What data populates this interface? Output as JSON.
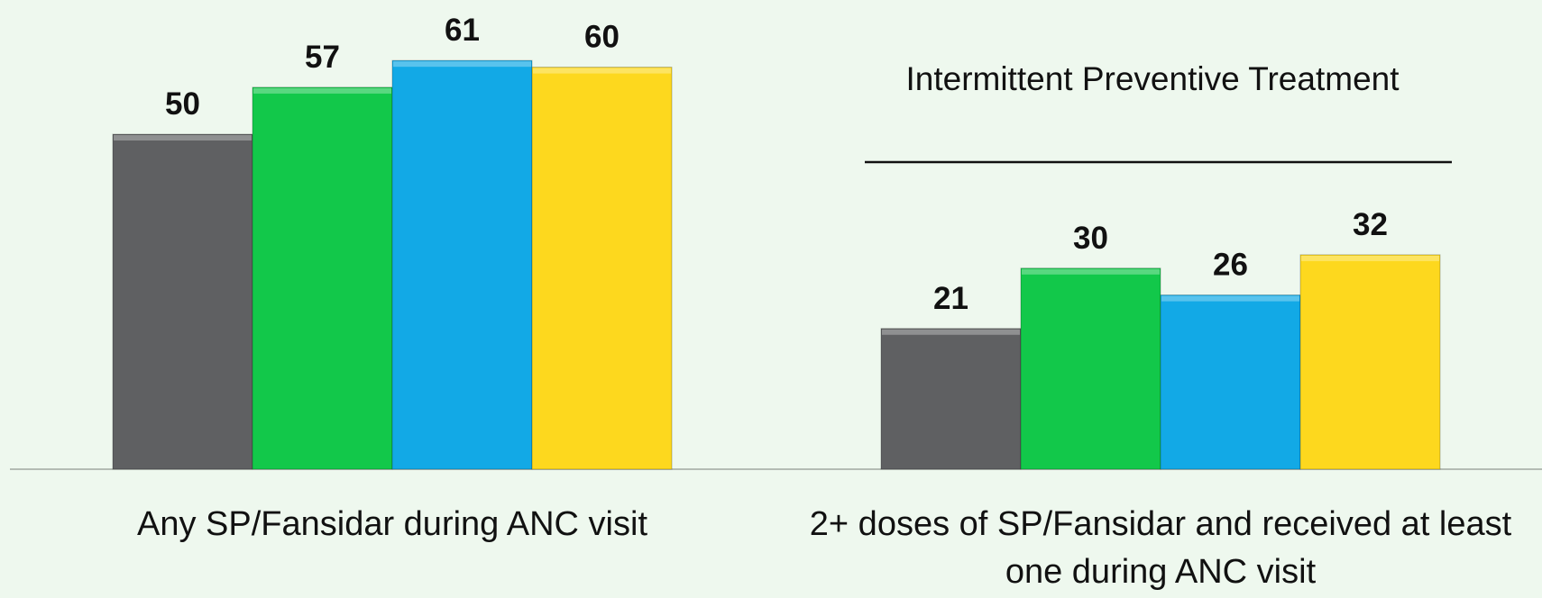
{
  "chart_data": {
    "type": "bar",
    "categories": [
      "Any SP/Fansidar during ANC visit",
      "2+ doses of SP/Fansidar and received at least one during ANC visit"
    ],
    "series": [
      {
        "color": "#5f6062",
        "values": [
          50,
          21
        ]
      },
      {
        "color": "#12c84a",
        "values": [
          57,
          30
        ]
      },
      {
        "color": "#12a9e6",
        "values": [
          61,
          26
        ]
      },
      {
        "color": "#fdd81e",
        "values": [
          60,
          32
        ]
      }
    ],
    "annotation": "Intermittent Preventive Treatment"
  }
}
